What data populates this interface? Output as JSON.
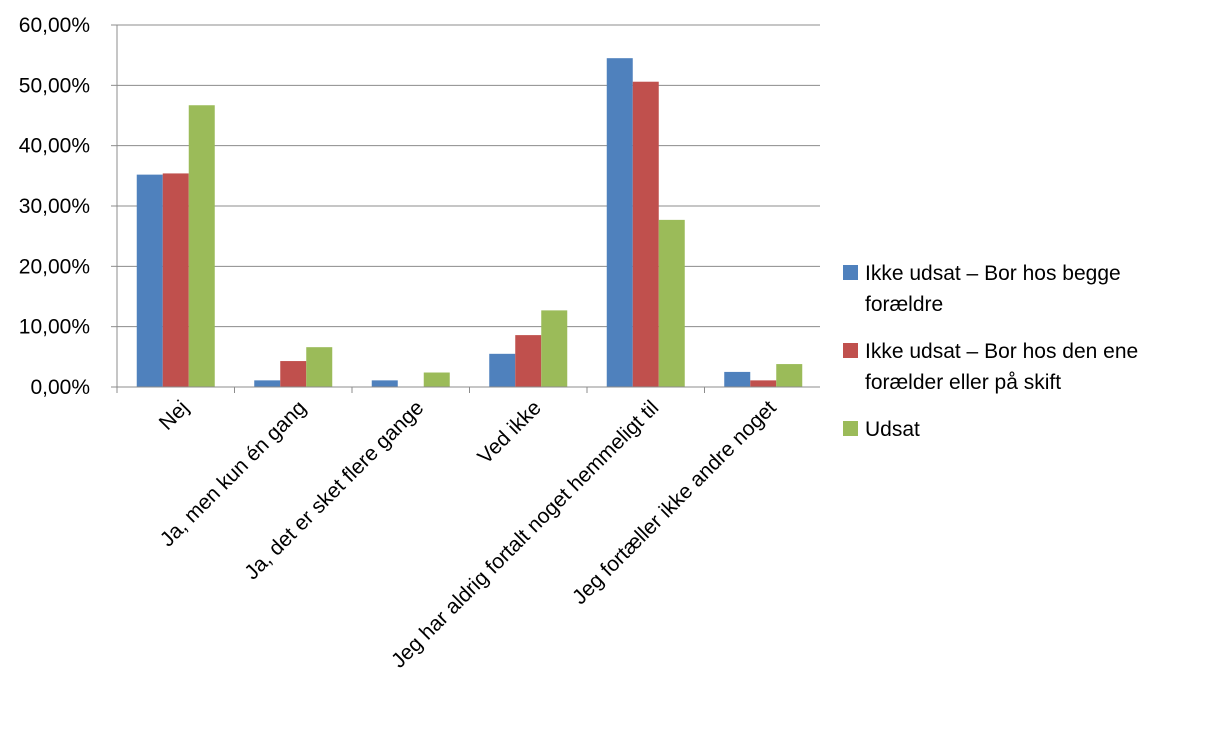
{
  "chart_data": {
    "type": "bar",
    "title": "",
    "xlabel": "",
    "ylabel": "",
    "ylim": [
      0,
      0.6
    ],
    "y_tick_labels": [
      "0,00%",
      "10,00%",
      "20,00%",
      "30,00%",
      "40,00%",
      "50,00%",
      "60,00%"
    ],
    "grid": true,
    "legend_position": "right",
    "categories": [
      "Nej",
      "Ja, men kun én gang",
      "Ja, det er sket flere gange",
      "Ved ikke",
      "Jeg har aldrig fortalt noget hemmeligt til",
      "Jeg fortæller ikke andre noget"
    ],
    "series": [
      {
        "name": "Ikke udsat – Bor hos begge forældre",
        "color": "#4F81BD",
        "values": [
          0.352,
          0.011,
          0.011,
          0.055,
          0.545,
          0.025
        ]
      },
      {
        "name": "Ikke udsat – Bor hos den ene forælder eller på skift",
        "color": "#C0504D",
        "values": [
          0.354,
          0.043,
          0.0,
          0.086,
          0.506,
          0.011
        ]
      },
      {
        "name": "Udsat",
        "color": "#9BBB59",
        "values": [
          0.467,
          0.066,
          0.024,
          0.127,
          0.277,
          0.038
        ]
      }
    ]
  }
}
